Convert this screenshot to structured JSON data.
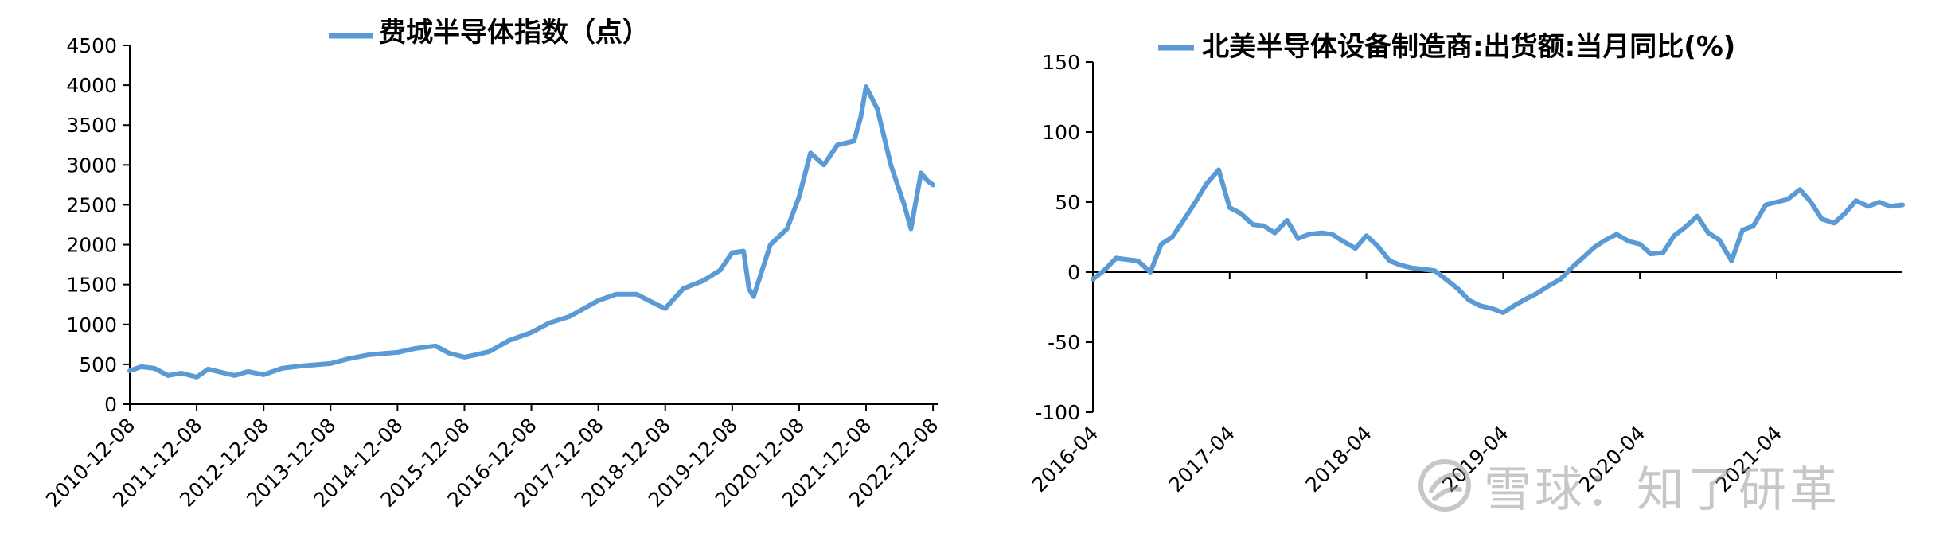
{
  "chart_data": [
    {
      "type": "line",
      "title": "费城半导体指数（点）",
      "legend": {
        "position": "top",
        "entries": [
          "费城半导体指数（点）"
        ]
      },
      "color": "#5b9bd5",
      "xlabel": "",
      "ylabel": "",
      "ylim": [
        0,
        4500
      ],
      "yticks": [
        0,
        500,
        1000,
        1500,
        2000,
        2500,
        3000,
        3500,
        4000,
        4500
      ],
      "xlim": [
        2010.93,
        2023.0
      ],
      "xticks": [
        2010.93,
        2011.93,
        2012.93,
        2013.93,
        2014.93,
        2015.93,
        2016.93,
        2017.93,
        2018.93,
        2019.93,
        2020.93,
        2021.93,
        2022.93
      ],
      "xticklabels": [
        "2010-12-08",
        "2011-12-08",
        "2012-12-08",
        "2013-12-08",
        "2014-12-08",
        "2015-12-08",
        "2016-12-08",
        "2017-12-08",
        "2018-12-08",
        "2019-12-08",
        "2020-12-08",
        "2021-12-08",
        "2022-12-08"
      ],
      "grid": false,
      "series": [
        {
          "name": "费城半导体指数（点）",
          "x": [
            2010.93,
            2011.1,
            2011.3,
            2011.5,
            2011.7,
            2011.93,
            2012.1,
            2012.3,
            2012.5,
            2012.7,
            2012.93,
            2013.2,
            2013.5,
            2013.93,
            2014.2,
            2014.5,
            2014.93,
            2015.2,
            2015.5,
            2015.7,
            2015.93,
            2016.1,
            2016.3,
            2016.6,
            2016.93,
            2017.2,
            2017.5,
            2017.93,
            2018.2,
            2018.5,
            2018.8,
            2018.93,
            2019.2,
            2019.5,
            2019.75,
            2019.93,
            2020.1,
            2020.18,
            2020.25,
            2020.5,
            2020.75,
            2020.93,
            2021.1,
            2021.3,
            2021.5,
            2021.75,
            2021.85,
            2021.93,
            2022.1,
            2022.3,
            2022.5,
            2022.6,
            2022.75,
            2022.85,
            2022.93
          ],
          "y": [
            420,
            470,
            450,
            360,
            390,
            340,
            440,
            400,
            360,
            410,
            370,
            450,
            480,
            510,
            570,
            620,
            650,
            700,
            730,
            640,
            590,
            620,
            660,
            800,
            900,
            1020,
            1100,
            1300,
            1380,
            1380,
            1250,
            1200,
            1450,
            1550,
            1680,
            1900,
            1920,
            1450,
            1350,
            2000,
            2200,
            2600,
            3150,
            3000,
            3250,
            3300,
            3600,
            3980,
            3700,
            3000,
            2500,
            2200,
            2900,
            2800,
            2750
          ]
        }
      ]
    },
    {
      "type": "line",
      "title": "北美半导体设备制造商:出货额:当月同比(%)",
      "legend": {
        "position": "top",
        "entries": [
          "北美半导体设备制造商:出货额:当月同比(%)"
        ]
      },
      "color": "#5b9bd5",
      "xlabel": "",
      "ylabel": "",
      "ylim": [
        -100,
        150
      ],
      "yticks": [
        -100,
        -50,
        0,
        50,
        100,
        150
      ],
      "xlim": [
        2016.25,
        2022.17
      ],
      "xticks": [
        2016.25,
        2017.25,
        2018.25,
        2019.25,
        2020.25,
        2021.25
      ],
      "xticklabels": [
        "2016-04",
        "2017-04",
        "2018-04",
        "2019-04",
        "2020-04",
        "2021-04"
      ],
      "grid": false,
      "series": [
        {
          "name": "北美半导体设备制造商:出货额:当月同比(%)",
          "x": [
            2016.25,
            2016.33,
            2016.42,
            2016.5,
            2016.58,
            2016.67,
            2016.75,
            2016.83,
            2016.92,
            2017.0,
            2017.08,
            2017.17,
            2017.25,
            2017.33,
            2017.42,
            2017.5,
            2017.58,
            2017.67,
            2017.75,
            2017.83,
            2017.92,
            2018.0,
            2018.08,
            2018.17,
            2018.25,
            2018.33,
            2018.42,
            2018.5,
            2018.58,
            2018.67,
            2018.75,
            2018.83,
            2018.92,
            2019.0,
            2019.08,
            2019.17,
            2019.25,
            2019.33,
            2019.42,
            2019.5,
            2019.58,
            2019.67,
            2019.75,
            2019.83,
            2019.92,
            2020.0,
            2020.08,
            2020.17,
            2020.25,
            2020.33,
            2020.42,
            2020.5,
            2020.58,
            2020.67,
            2020.75,
            2020.83,
            2020.92,
            2021.0,
            2021.08,
            2021.17,
            2021.25,
            2021.33,
            2021.42,
            2021.5,
            2021.58,
            2021.67,
            2021.75,
            2021.83,
            2021.92,
            2022.0,
            2022.08,
            2022.17
          ],
          "y": [
            -5,
            1,
            10,
            9,
            8,
            0,
            20,
            25,
            38,
            50,
            63,
            73,
            46,
            42,
            34,
            33,
            28,
            37,
            24,
            27,
            28,
            27,
            22,
            17,
            26,
            19,
            8,
            5,
            3,
            2,
            1,
            -5,
            -12,
            -20,
            -24,
            -26,
            -29,
            -24,
            -19,
            -15,
            -10,
            -5,
            3,
            10,
            18,
            23,
            27,
            22,
            20,
            13,
            14,
            26,
            32,
            40,
            28,
            23,
            8,
            30,
            33,
            48,
            50,
            52,
            59,
            50,
            38,
            35,
            42,
            51,
            47,
            50,
            47,
            48
          ]
        }
      ]
    }
  ],
  "watermark": {
    "icon": "snowball-logo-icon",
    "text": "雪球：知了研革"
  }
}
